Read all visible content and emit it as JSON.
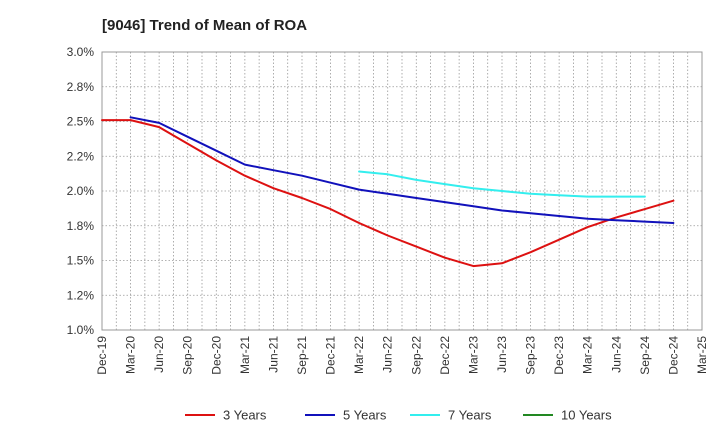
{
  "chart_data": {
    "type": "line",
    "title": "[9046]  Trend of Mean of ROA",
    "xlabel": "",
    "ylabel": "",
    "ylim": [
      1.0,
      3.0
    ],
    "y_ticks": [
      1.0,
      1.25,
      1.5,
      1.75,
      2.0,
      2.25,
      2.5,
      2.75,
      3.0
    ],
    "y_tick_labels": [
      "1.0%",
      "1.2%",
      "1.5%",
      "1.8%",
      "2.0%",
      "2.2%",
      "2.5%",
      "2.8%",
      "3.0%"
    ],
    "x_tick_labels": [
      "Dec-19",
      "Mar-20",
      "Jun-20",
      "Sep-20",
      "Dec-20",
      "Mar-21",
      "Jun-21",
      "Sep-21",
      "Dec-21",
      "Mar-22",
      "Jun-22",
      "Sep-22",
      "Dec-22",
      "Mar-23",
      "Jun-23",
      "Sep-23",
      "Dec-23",
      "Mar-24",
      "Jun-24",
      "Sep-24",
      "Dec-24",
      "Mar-25"
    ],
    "grid": true,
    "legend_position": "bottom",
    "series": [
      {
        "name": "3 Years",
        "color": "#dd1111",
        "start_index": 0,
        "values": [
          2.51,
          2.51,
          2.46,
          2.34,
          2.22,
          2.11,
          2.02,
          1.95,
          1.87,
          1.77,
          1.68,
          1.6,
          1.52,
          1.46,
          1.48,
          1.56,
          1.65,
          1.74,
          1.81,
          1.87,
          1.93
        ]
      },
      {
        "name": "5 Years",
        "color": "#1111bb",
        "start_index": 1,
        "values": [
          2.53,
          2.49,
          2.39,
          2.29,
          2.19,
          2.15,
          2.11,
          2.06,
          2.01,
          1.98,
          1.95,
          1.92,
          1.89,
          1.86,
          1.84,
          1.82,
          1.8,
          1.79,
          1.78,
          1.77
        ]
      },
      {
        "name": "7 Years",
        "color": "#33eeee",
        "start_index": 9,
        "values": [
          2.14,
          2.12,
          2.08,
          2.05,
          2.02,
          2.0,
          1.98,
          1.97,
          1.96,
          1.96,
          1.96
        ]
      },
      {
        "name": "10 Years",
        "color": "#228822",
        "start_index": 0,
        "values": []
      }
    ]
  }
}
